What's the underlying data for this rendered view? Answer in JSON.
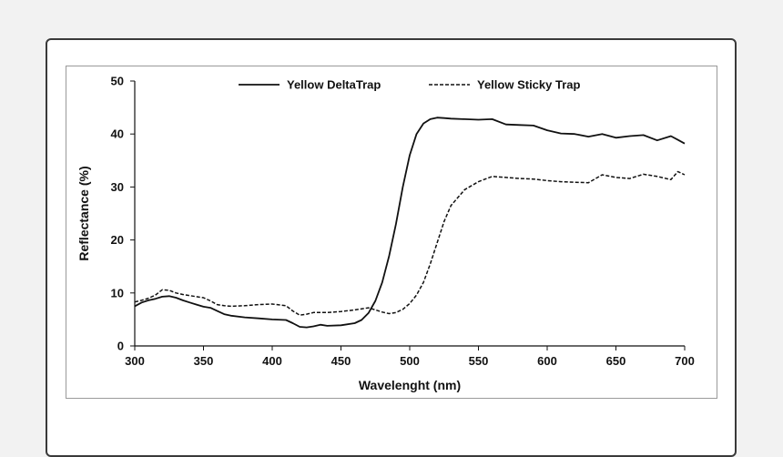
{
  "chart_data": {
    "type": "line",
    "title": "",
    "xlabel": "Wavelenght (nm)",
    "ylabel": "Reflectance (%)",
    "xlim": [
      300,
      700
    ],
    "ylim": [
      0,
      50
    ],
    "xticks": [
      300,
      350,
      400,
      450,
      500,
      550,
      600,
      650,
      700
    ],
    "yticks": [
      0,
      10,
      20,
      30,
      40,
      50
    ],
    "grid": false,
    "legend": "top-center",
    "series": [
      {
        "name": "Yellow DeltaTrap",
        "style": "solid",
        "color": "#111111",
        "x": [
          300,
          305,
          310,
          315,
          320,
          325,
          330,
          335,
          340,
          345,
          350,
          355,
          360,
          365,
          370,
          380,
          390,
          400,
          410,
          415,
          420,
          425,
          430,
          435,
          440,
          450,
          460,
          465,
          470,
          475,
          480,
          485,
          490,
          495,
          500,
          505,
          510,
          515,
          520,
          525,
          530,
          540,
          550,
          560,
          570,
          580,
          590,
          600,
          610,
          620,
          630,
          640,
          650,
          660,
          670,
          680,
          690,
          695,
          700
        ],
        "values": [
          7.5,
          8.2,
          8.6,
          8.9,
          9.3,
          9.4,
          9.1,
          8.6,
          8.2,
          7.8,
          7.4,
          7.2,
          6.6,
          6.0,
          5.7,
          5.4,
          5.2,
          5.0,
          4.9,
          4.3,
          3.6,
          3.5,
          3.7,
          4.0,
          3.8,
          3.9,
          4.3,
          4.9,
          6.2,
          8.5,
          12.0,
          17.0,
          23.0,
          30.0,
          36.0,
          40.0,
          42.0,
          42.8,
          43.1,
          43.0,
          42.9,
          42.8,
          42.7,
          42.8,
          41.8,
          41.7,
          41.6,
          40.7,
          40.1,
          40.0,
          39.5,
          40.0,
          39.3,
          39.6,
          39.8,
          38.8,
          39.6,
          38.9,
          38.2
        ]
      },
      {
        "name": "Yellow Sticky Trap",
        "style": "dashed",
        "color": "#111111",
        "x": [
          300,
          305,
          310,
          315,
          320,
          325,
          330,
          335,
          340,
          345,
          350,
          355,
          360,
          365,
          370,
          380,
          390,
          400,
          410,
          415,
          420,
          425,
          430,
          440,
          450,
          460,
          470,
          475,
          480,
          485,
          490,
          495,
          500,
          505,
          510,
          515,
          520,
          525,
          530,
          540,
          550,
          560,
          570,
          580,
          590,
          600,
          610,
          620,
          630,
          640,
          650,
          660,
          670,
          680,
          690,
          695,
          700
        ],
        "values": [
          8.3,
          8.6,
          9.0,
          9.6,
          10.6,
          10.5,
          10.0,
          9.7,
          9.5,
          9.3,
          9.1,
          8.5,
          7.8,
          7.6,
          7.5,
          7.6,
          7.8,
          7.9,
          7.6,
          6.6,
          5.8,
          6.0,
          6.3,
          6.3,
          6.5,
          6.8,
          7.2,
          6.8,
          6.4,
          6.1,
          6.3,
          6.9,
          8.0,
          9.6,
          12.0,
          15.5,
          19.5,
          23.5,
          26.5,
          29.5,
          31.0,
          32.0,
          31.8,
          31.6,
          31.5,
          31.2,
          31.0,
          30.9,
          30.8,
          32.3,
          31.8,
          31.6,
          32.4,
          32.0,
          31.4,
          32.9,
          32.3
        ]
      }
    ]
  }
}
